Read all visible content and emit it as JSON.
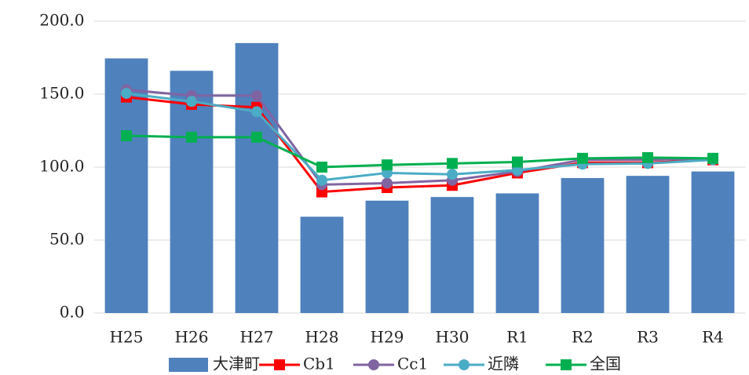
{
  "chart_data": {
    "type": "bar_line",
    "categories": [
      "H25",
      "H26",
      "H27",
      "H28",
      "H29",
      "H30",
      "R1",
      "R2",
      "R3",
      "R4"
    ],
    "series": [
      {
        "name": "大津町",
        "type": "bar",
        "color": "#4f81bd",
        "values": [
          174.5,
          166,
          185,
          66,
          77,
          79.5,
          82,
          92.5,
          94,
          97
        ]
      },
      {
        "name": "Cb1",
        "type": "line",
        "marker": "square",
        "color": "#ff0000",
        "values": [
          148,
          143,
          141,
          83,
          86,
          87.5,
          96,
          103,
          103,
          105
        ]
      },
      {
        "name": "Cc1",
        "type": "line",
        "marker": "circle",
        "color": "#8064a2",
        "values": [
          153,
          149,
          149,
          88,
          89,
          91,
          97,
          105,
          105,
          106
        ]
      },
      {
        "name": "近隣",
        "type": "line",
        "marker": "circle",
        "color": "#4bacc6",
        "values": [
          150.5,
          145,
          138,
          91,
          96,
          95,
          98,
          102,
          102.5,
          105
        ]
      },
      {
        "name": "全国",
        "type": "line",
        "marker": "square",
        "color": "#00b050",
        "values": [
          121.5,
          120.5,
          120.5,
          100,
          101.5,
          102.5,
          103.5,
          106,
          106.5,
          106
        ]
      }
    ],
    "ylim": [
      0,
      200
    ],
    "yticks": [
      {
        "value": 0,
        "label": "0.0"
      },
      {
        "value": 50,
        "label": "50.0"
      },
      {
        "value": 100,
        "label": "100.0"
      },
      {
        "value": 150,
        "label": "150.0"
      },
      {
        "value": 200,
        "label": "200.0"
      }
    ],
    "grid": true,
    "legend": "bottom"
  }
}
